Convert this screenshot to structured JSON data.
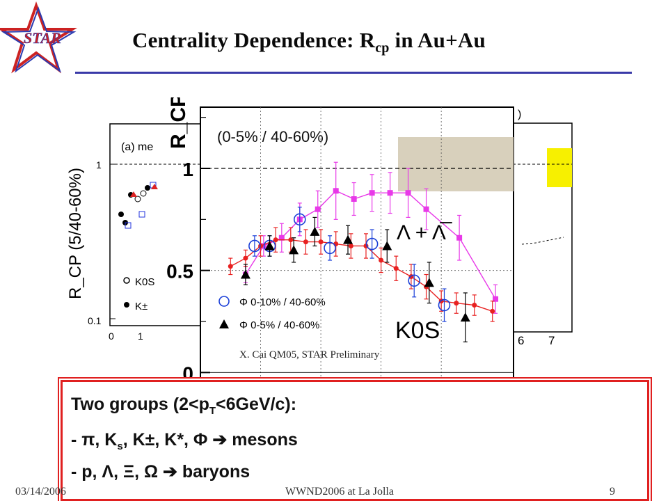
{
  "slide": {
    "title_main": "Centrality Dependence: R",
    "title_sub": "cp",
    "title_tail": " in Au+Au",
    "logo_text": "STAR",
    "footer_date": "03/14/2006",
    "footer_conf": "WWND2006 at La Jolla",
    "footer_page": "9"
  },
  "summary": {
    "line1_a": "Two groups (2<p",
    "line1_sub": "T",
    "line1_b": "<6GeV/c):",
    "line2_a": " - π, K",
    "line2_sub": "s",
    "line2_b": ", K±, K*, Φ  ➔  mesons",
    "line3": " - p, Λ, Ξ, Ω  ➔  baryons"
  },
  "left_panel": {
    "ylabel": "R_CP (5/40-60%)",
    "panel_label": "(a) me",
    "y_ticks": [
      "1",
      "0.1"
    ],
    "x_ticks": [
      "0",
      "1"
    ],
    "legend": [
      "K0S",
      "K±"
    ]
  },
  "right_panel": {
    "x_ticks": [
      "6",
      "7"
    ],
    "top_label": ")"
  },
  "chart_data": {
    "type": "scatter",
    "title": "(0-5% / 40-60%)",
    "ylabel": "R_CP",
    "y_ticks": [
      "0",
      "0.5",
      "1"
    ],
    "ylim": [
      -0.05,
      1.3
    ],
    "xlim": [
      0,
      5.2
    ],
    "reference_line_y": 1,
    "annotation": "X. Cai QM05, STAR Preliminary",
    "label_lambda": "Λ + Λ̅",
    "label_kshort": "K0S",
    "legend": [
      {
        "marker": "open-circle",
        "color": "#1a3fd8",
        "label": "Φ  0-10% / 40-60%"
      },
      {
        "marker": "triangle",
        "color": "#000000",
        "label": "Φ   0-5% / 40-60%"
      }
    ],
    "series": [
      {
        "name": "Λ + Λ̅",
        "color": "#e839e8",
        "x": [
          0.75,
          1.05,
          1.35,
          1.65,
          1.95,
          2.25,
          2.55,
          2.85,
          3.15,
          3.45,
          3.75,
          4.3,
          4.9
        ],
        "y": [
          0.48,
          0.62,
          0.66,
          0.75,
          0.8,
          0.89,
          0.85,
          0.88,
          0.88,
          0.88,
          0.8,
          0.66,
          0.36
        ],
        "err": [
          0.04,
          0.05,
          0.07,
          0.08,
          0.09,
          0.14,
          0.08,
          0.09,
          0.1,
          0.12,
          0.1,
          0.11,
          0.07
        ]
      },
      {
        "name": "K0S",
        "color": "#e82020",
        "x": [
          0.5,
          0.75,
          1.0,
          1.25,
          1.5,
          1.75,
          2.0,
          2.25,
          2.5,
          2.75,
          3.0,
          3.25,
          3.5,
          3.75,
          4.0,
          4.25,
          4.55,
          4.85
        ],
        "y": [
          0.52,
          0.56,
          0.62,
          0.65,
          0.65,
          0.64,
          0.64,
          0.63,
          0.62,
          0.62,
          0.55,
          0.51,
          0.47,
          0.42,
          0.35,
          0.34,
          0.33,
          0.3
        ],
        "err": [
          0.04,
          0.04,
          0.05,
          0.06,
          0.06,
          0.06,
          0.06,
          0.06,
          0.06,
          0.06,
          0.06,
          0.06,
          0.06,
          0.06,
          0.05,
          0.05,
          0.05,
          0.05
        ]
      },
      {
        "name": "Φ 0-10% / 40-60%",
        "marker": "open-circle",
        "color": "#1a3fd8",
        "x": [
          0.9,
          1.15,
          1.65,
          2.15,
          2.85,
          3.55,
          4.05
        ],
        "y": [
          0.62,
          0.62,
          0.75,
          0.61,
          0.63,
          0.45,
          0.33
        ],
        "err": [
          0.05,
          0.05,
          0.06,
          0.06,
          0.07,
          0.08,
          0.08
        ]
      },
      {
        "name": "Φ 0-5% / 40-60%",
        "marker": "triangle",
        "color": "#000000",
        "x": [
          0.75,
          1.15,
          1.55,
          1.9,
          2.45,
          3.1,
          3.8,
          4.4
        ],
        "y": [
          0.48,
          0.62,
          0.6,
          0.69,
          0.65,
          0.62,
          0.44,
          0.27
        ],
        "err": [
          0.05,
          0.05,
          0.06,
          0.07,
          0.07,
          0.08,
          0.1,
          0.12
        ]
      }
    ]
  }
}
